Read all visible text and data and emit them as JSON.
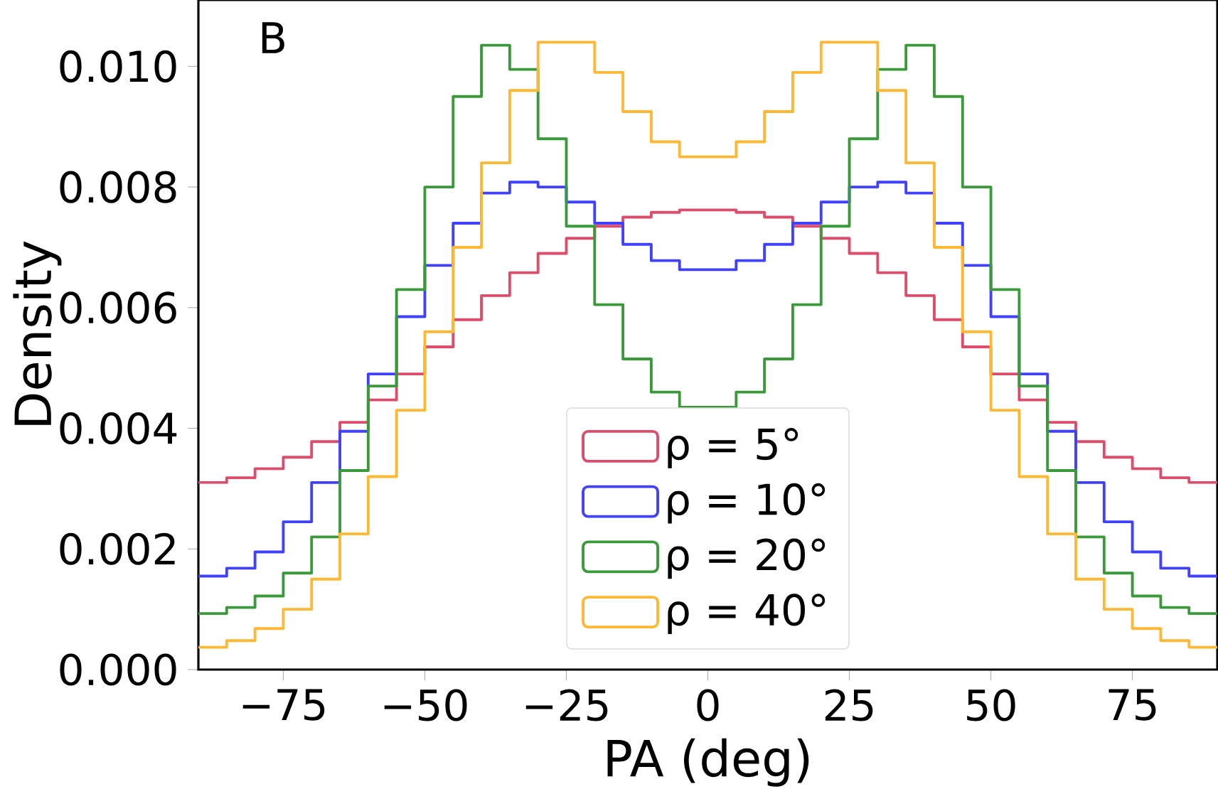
{
  "chart_data": {
    "type": "histogram",
    "xlabel": "PA (deg)",
    "ylabel": "Density",
    "annotations": [
      "B"
    ],
    "bins": [
      -90,
      -85,
      -80,
      -75,
      -70,
      -65,
      -60,
      -55,
      -50,
      -45,
      -40,
      -35,
      -30,
      -25,
      -20,
      -15,
      -10,
      -5,
      0,
      5,
      10,
      15,
      20,
      25,
      30,
      35,
      40,
      45,
      50,
      55,
      60,
      65,
      70,
      75,
      80,
      85,
      90
    ],
    "series": [
      {
        "name": "ρ = 5°",
        "color": "#dc4c6b",
        "values": [
          0.0031,
          0.00318,
          0.00333,
          0.00352,
          0.00378,
          0.0041,
          0.00447,
          0.0049,
          0.00535,
          0.0058,
          0.0062,
          0.00658,
          0.0069,
          0.00715,
          0.00735,
          0.0075,
          0.00758,
          0.00762,
          0.00762,
          0.00758,
          0.0075,
          0.00735,
          0.00715,
          0.0069,
          0.00658,
          0.0062,
          0.0058,
          0.00535,
          0.0049,
          0.00447,
          0.0041,
          0.00378,
          0.00352,
          0.00333,
          0.00318,
          0.0031
        ]
      },
      {
        "name": "ρ = 10°",
        "color": "#4040ff",
        "values": [
          0.00155,
          0.00168,
          0.00195,
          0.00245,
          0.0031,
          0.00395,
          0.0049,
          0.00585,
          0.0067,
          0.0074,
          0.0079,
          0.00808,
          0.008,
          0.00775,
          0.0074,
          0.00705,
          0.00678,
          0.00663,
          0.00663,
          0.00678,
          0.00705,
          0.0074,
          0.00775,
          0.008,
          0.00808,
          0.0079,
          0.0074,
          0.0067,
          0.00585,
          0.0049,
          0.00395,
          0.0031,
          0.00245,
          0.00195,
          0.00168,
          0.00155
        ]
      },
      {
        "name": "ρ = 20°",
        "color": "#3a9a3a",
        "values": [
          0.00093,
          0.00103,
          0.00122,
          0.0016,
          0.0022,
          0.0033,
          0.0047,
          0.0063,
          0.008,
          0.0095,
          0.01035,
          0.00995,
          0.0088,
          0.00735,
          0.00605,
          0.00515,
          0.0046,
          0.00435,
          0.00435,
          0.0046,
          0.00515,
          0.00605,
          0.00735,
          0.0088,
          0.00995,
          0.01035,
          0.0095,
          0.008,
          0.0063,
          0.0047,
          0.0033,
          0.0022,
          0.0016,
          0.00122,
          0.00103,
          0.00093
        ]
      },
      {
        "name": "ρ = 40°",
        "color": "#ffb833",
        "values": [
          0.00037,
          0.00048,
          0.00068,
          0.001,
          0.0015,
          0.00225,
          0.0032,
          0.0043,
          0.0056,
          0.007,
          0.0084,
          0.0096,
          0.0104,
          0.0104,
          0.0099,
          0.00925,
          0.00875,
          0.0085,
          0.0085,
          0.00875,
          0.00925,
          0.0099,
          0.0104,
          0.0104,
          0.0096,
          0.0084,
          0.007,
          0.0056,
          0.0043,
          0.0032,
          0.00225,
          0.0015,
          0.001,
          0.00068,
          0.00048,
          0.00037
        ]
      }
    ],
    "xlim": [
      -90,
      90
    ],
    "ylim": [
      0,
      0.0111
    ],
    "xticks": [
      {
        "value": -75,
        "label": "−75"
      },
      {
        "value": -50,
        "label": "−50"
      },
      {
        "value": -25,
        "label": "−25"
      },
      0,
      25,
      50,
      75
    ],
    "yticks": [
      {
        "value": 0,
        "label": "0.000"
      },
      {
        "value": 0.002,
        "label": "0.002"
      },
      {
        "value": 0.004,
        "label": "0.004"
      },
      {
        "value": 0.006,
        "label": "0.006"
      },
      {
        "value": 0.008,
        "label": "0.008"
      },
      {
        "value": 0.01,
        "label": "0.010"
      }
    ],
    "legend": "bottom",
    "grid": false
  }
}
